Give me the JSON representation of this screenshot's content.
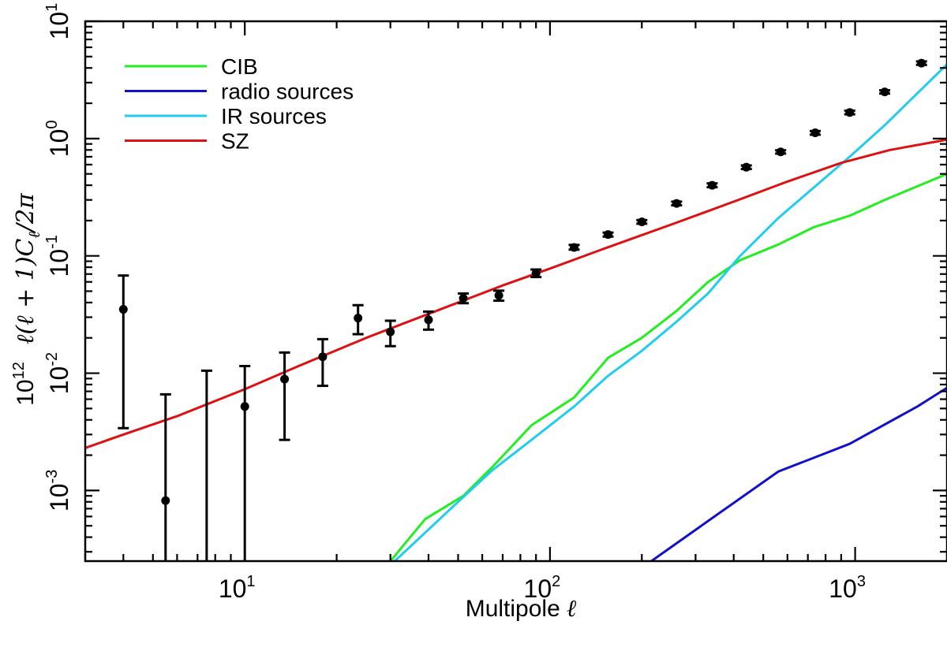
{
  "chart_data": {
    "type": "line",
    "title": "",
    "xlabel": "Multipole",
    "xlabel_symbol": "ℓ",
    "ylabel_prefix": "10",
    "ylabel_prefix_exp": "12",
    "ylabel_expr": "ℓ(ℓ + 1)C",
    "ylabel_sub": "ℓ",
    "ylabel_suffix": "/2π",
    "xscale": "log",
    "yscale": "log",
    "xlim": [
      3,
      2000
    ],
    "ylim": [
      0.00025,
      10
    ],
    "grid": false,
    "legend_position": "top-left",
    "x_ticks": [
      {
        "value": 10,
        "base": "10",
        "exp": "1"
      },
      {
        "value": 100,
        "base": "10",
        "exp": "2"
      },
      {
        "value": 1000,
        "base": "10",
        "exp": "3"
      }
    ],
    "y_ticks": [
      {
        "value": 0.001,
        "base": "10",
        "exp": "-3"
      },
      {
        "value": 0.01,
        "base": "10",
        "exp": "-2"
      },
      {
        "value": 0.1,
        "base": "10",
        "exp": "-1"
      },
      {
        "value": 1,
        "base": "10",
        "exp": "0"
      },
      {
        "value": 10,
        "base": "10",
        "exp": "1"
      }
    ],
    "series": [
      {
        "name": "CIB",
        "color": "#22ee22",
        "x": [
          30,
          39,
          52,
          65,
          87,
          120,
          155,
          200,
          260,
          330,
          420,
          560,
          730,
          960,
          1250,
          2000
        ],
        "y": [
          0.00025,
          0.00057,
          0.0009,
          0.0016,
          0.0036,
          0.0062,
          0.0135,
          0.02,
          0.034,
          0.06,
          0.092,
          0.125,
          0.175,
          0.22,
          0.3,
          0.5
        ]
      },
      {
        "name": "radio sources",
        "color": "#1111cc",
        "x": [
          215,
          330,
          560,
          960,
          1600,
          2000
        ],
        "y": [
          0.00025,
          0.00055,
          0.00145,
          0.0025,
          0.0052,
          0.0075
        ]
      },
      {
        "name": "IR sources",
        "color": "#22ccee",
        "x": [
          31,
          52,
          65,
          87,
          120,
          155,
          200,
          260,
          330,
          420,
          560,
          730,
          960,
          1250,
          2000
        ],
        "y": [
          0.00025,
          0.00088,
          0.0015,
          0.0027,
          0.0052,
          0.0095,
          0.0155,
          0.0275,
          0.048,
          0.1,
          0.21,
          0.38,
          0.7,
          1.3,
          4.3
        ]
      },
      {
        "name": "SZ",
        "color": "#dd1111",
        "x": [
          3,
          4,
          6,
          10,
          15,
          25,
          40,
          70,
          100,
          150,
          250,
          400,
          600,
          900,
          1300,
          2000
        ],
        "y": [
          0.0023,
          0.003,
          0.0043,
          0.0073,
          0.0115,
          0.02,
          0.032,
          0.056,
          0.078,
          0.115,
          0.185,
          0.29,
          0.43,
          0.62,
          0.8,
          0.98
        ]
      }
    ],
    "points": {
      "name": "data",
      "color": "#000000",
      "x": [
        4,
        5.5,
        7.5,
        10,
        13.5,
        18,
        23.5,
        30,
        40,
        52,
        68,
        90,
        120,
        155,
        200,
        260,
        340,
        440,
        570,
        740,
        960,
        1250,
        1650
      ],
      "y": [
        0.035,
        0.00082,
        null,
        0.0052,
        0.0089,
        0.0138,
        0.0295,
        0.0225,
        0.0285,
        0.0435,
        0.046,
        0.071,
        0.118,
        0.152,
        0.195,
        0.28,
        0.4,
        0.57,
        0.77,
        1.12,
        1.67,
        2.5,
        4.4
      ],
      "ylo": [
        0.0034,
        0.00025,
        0.00025,
        0.00025,
        0.0027,
        0.0078,
        0.0215,
        0.017,
        0.0235,
        0.0395,
        0.0415,
        0.066,
        0.113,
        0.146,
        0.188,
        0.27,
        0.385,
        0.55,
        0.745,
        1.08,
        1.61,
        2.42,
        4.25
      ],
      "yhi": [
        0.068,
        0.0066,
        0.0105,
        0.0115,
        0.015,
        0.0195,
        0.038,
        0.028,
        0.0335,
        0.0478,
        0.0505,
        0.0765,
        0.124,
        0.158,
        0.202,
        0.29,
        0.415,
        0.59,
        0.795,
        1.16,
        1.73,
        2.58,
        4.55
      ]
    }
  }
}
